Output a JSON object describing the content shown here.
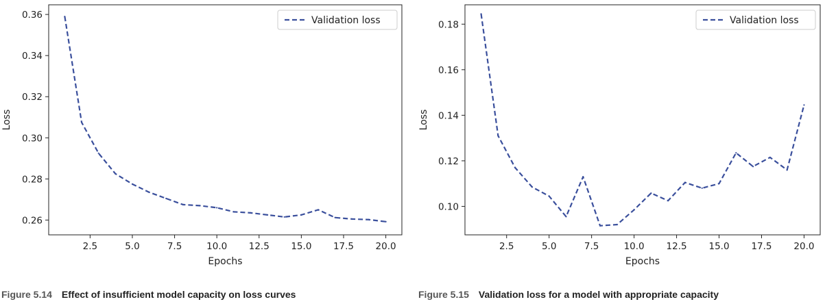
{
  "chart_data": [
    {
      "type": "line",
      "xlabel": "Epochs",
      "ylabel": "Loss",
      "xlim": [
        0.05,
        20.95
      ],
      "ylim": [
        0.2528,
        0.3647
      ],
      "xticks": [
        2.5,
        5.0,
        7.5,
        10.0,
        12.5,
        15.0,
        17.5,
        20.0
      ],
      "xtick_labels": [
        "2.5",
        "5.0",
        "7.5",
        "10.0",
        "12.5",
        "15.0",
        "17.5",
        "20.0"
      ],
      "yticks": [
        0.26,
        0.28,
        0.3,
        0.32,
        0.34,
        0.36
      ],
      "ytick_labels": [
        "0.26",
        "0.28",
        "0.30",
        "0.32",
        "0.34",
        "0.36"
      ],
      "grid": false,
      "legend": "top-right",
      "series": [
        {
          "name": "Validation loss",
          "color": "#3a4f9c",
          "style": "dashed",
          "x": [
            1,
            2,
            3,
            4,
            5,
            6,
            7,
            8,
            9,
            10,
            11,
            12,
            13,
            14,
            15,
            16,
            17,
            18,
            19,
            20
          ],
          "y": [
            0.359,
            0.3075,
            0.2925,
            0.2825,
            0.2775,
            0.2735,
            0.2705,
            0.2675,
            0.267,
            0.266,
            0.264,
            0.2635,
            0.2625,
            0.2615,
            0.2625,
            0.265,
            0.2612,
            0.2605,
            0.2602,
            0.2592
          ]
        }
      ]
    },
    {
      "type": "line",
      "xlabel": "Epochs",
      "ylabel": "Loss",
      "xlim": [
        0.05,
        20.95
      ],
      "ylim": [
        0.0875,
        0.1885
      ],
      "xticks": [
        2.5,
        5.0,
        7.5,
        10.0,
        12.5,
        15.0,
        17.5,
        20.0
      ],
      "xtick_labels": [
        "2.5",
        "5.0",
        "7.5",
        "10.0",
        "12.5",
        "15.0",
        "17.5",
        "20.0"
      ],
      "yticks": [
        0.1,
        0.12,
        0.14,
        0.16,
        0.18
      ],
      "ytick_labels": [
        "0.10",
        "0.12",
        "0.14",
        "0.16",
        "0.18"
      ],
      "grid": false,
      "legend": "top-right",
      "series": [
        {
          "name": "Validation loss",
          "color": "#3a4f9c",
          "style": "dashed",
          "x": [
            1,
            2,
            3,
            4,
            5,
            6,
            7,
            8,
            9,
            10,
            11,
            12,
            13,
            14,
            15,
            16,
            17,
            18,
            19,
            20
          ],
          "y": [
            0.1845,
            0.131,
            0.117,
            0.1085,
            0.1045,
            0.0955,
            0.113,
            0.0915,
            0.092,
            0.0985,
            0.1058,
            0.1025,
            0.1105,
            0.108,
            0.11,
            0.1235,
            0.1175,
            0.1215,
            0.116,
            0.1445
          ]
        }
      ]
    }
  ],
  "captions": [
    {
      "number": "Figure 5.14",
      "text": "Effect of insufficient model capacity on loss curves"
    },
    {
      "number": "Figure 5.15",
      "text": "Validation loss for a model with appropriate capacity"
    }
  ]
}
